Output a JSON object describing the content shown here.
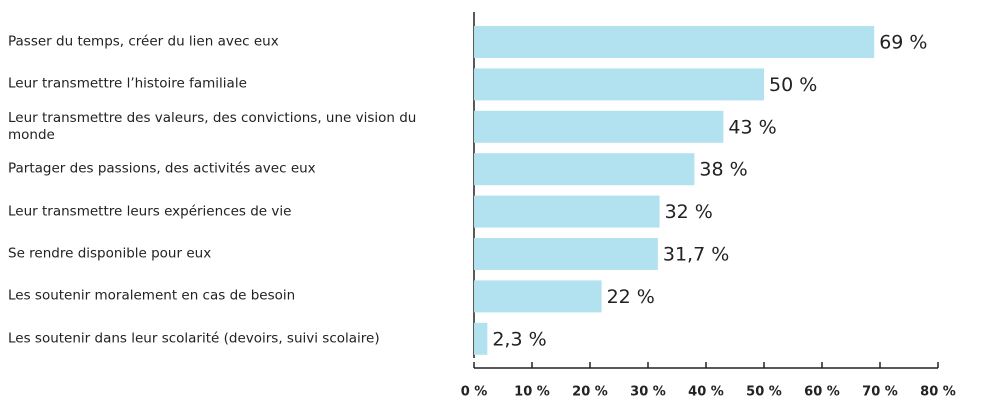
{
  "chart_data": {
    "type": "barh",
    "categories": [
      "Passer du temps, créer du lien avec eux",
      "Leur transmettre l’histoire familiale",
      "Leur transmettre des valeurs, des convictions, une vision du monde",
      "Partager des passions, des activités avec eux",
      "Leur transmettre leurs expériences de vie",
      "Se rendre disponible pour eux",
      "Les soutenir moralement en cas de besoin",
      "Les soutenir dans leur scolarité (devoirs, suivi scolaire)"
    ],
    "values": [
      69,
      50,
      43,
      38,
      32,
      31.7,
      22,
      2.3
    ],
    "value_labels": [
      "69 %",
      "50 %",
      "43 %",
      "38 %",
      "32 %",
      "31,7 %",
      "22 %",
      "2,3 %"
    ],
    "color": "#b2e1ef",
    "xlim": [
      0,
      80
    ],
    "xticks": [
      {
        "value": 0,
        "label": "0 %"
      },
      {
        "value": 10,
        "label": "10 %"
      },
      {
        "value": 20,
        "label": "20 %"
      },
      {
        "value": 30,
        "label": "30 %"
      },
      {
        "value": 40,
        "label": "40 %"
      },
      {
        "value": 50,
        "label": "50 %"
      },
      {
        "value": 60,
        "label": "60 %"
      },
      {
        "value": 70,
        "label": "70 %"
      },
      {
        "value": 80,
        "label": "80 %"
      }
    ]
  }
}
